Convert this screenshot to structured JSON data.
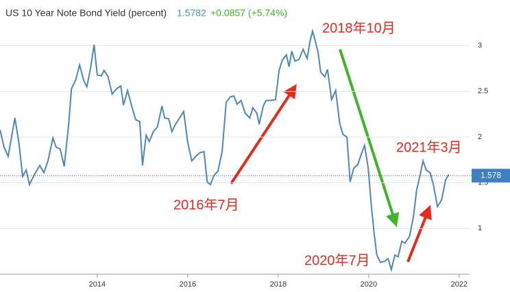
{
  "chart_data": {
    "type": "line",
    "title": "US 10 Year Note Bond Yield (percent)",
    "last": 1.5782,
    "change": "+0.0857 (+5.74%)",
    "last_value": 1.578,
    "annotations": [
      "2018年10月",
      "2021年3月",
      "2016年7月",
      "2020年7月"
    ],
    "xlim": [
      2011.85,
      2022.23
    ],
    "xticks": [
      2014,
      2016,
      2018,
      2020,
      2022
    ],
    "ylim": [
      0.5,
      3.5
    ],
    "yticks": [
      1,
      1.5,
      2,
      2.5,
      3
    ],
    "grid": true,
    "x": [
      2011.85,
      2011.94,
      2012.03,
      2012.18,
      2012.27,
      2012.35,
      2012.43,
      2012.5,
      2012.61,
      2012.73,
      2012.82,
      2012.91,
      2013.02,
      2013.09,
      2013.18,
      2013.27,
      2013.37,
      2013.43,
      2013.52,
      2013.61,
      2013.7,
      2013.77,
      2013.85,
      2013.93,
      2014.0,
      2014.09,
      2014.15,
      2014.24,
      2014.33,
      2014.43,
      2014.52,
      2014.58,
      2014.67,
      2014.76,
      2014.85,
      2014.94,
      2015.0,
      2015.08,
      2015.15,
      2015.24,
      2015.33,
      2015.43,
      2015.49,
      2015.58,
      2015.65,
      2015.73,
      2015.82,
      2015.91,
      2016.0,
      2016.09,
      2016.18,
      2016.27,
      2016.36,
      2016.43,
      2016.5,
      2016.58,
      2016.67,
      2016.76,
      2016.85,
      2016.94,
      2017.02,
      2017.09,
      2017.18,
      2017.27,
      2017.37,
      2017.44,
      2017.53,
      2017.58,
      2017.67,
      2017.73,
      2017.82,
      2017.94,
      2018.02,
      2018.09,
      2018.18,
      2018.24,
      2018.3,
      2018.37,
      2018.46,
      2018.55,
      2018.64,
      2018.7,
      2018.76,
      2018.82,
      2018.88,
      2018.94,
      2019.03,
      2019.09,
      2019.18,
      2019.27,
      2019.36,
      2019.43,
      2019.52,
      2019.59,
      2019.67,
      2019.76,
      2019.82,
      2019.91,
      2019.99,
      2020.06,
      2020.12,
      2020.18,
      2020.26,
      2020.35,
      2020.43,
      2020.5,
      2020.58,
      2020.65,
      2020.73,
      2020.8,
      2020.9,
      2020.99,
      2021.06,
      2021.14,
      2021.2,
      2021.27,
      2021.36,
      2021.43,
      2021.52,
      2021.61,
      2021.7,
      2021.77
    ],
    "series": [
      {
        "name": "US 10 Year Note Bond Yield",
        "color": "#4a86c0",
        "values": [
          2.08,
          1.89,
          1.79,
          2.21,
          1.93,
          1.57,
          1.64,
          1.48,
          1.59,
          1.69,
          1.61,
          1.74,
          1.99,
          1.89,
          1.87,
          1.68,
          2.15,
          2.53,
          2.62,
          2.79,
          2.62,
          2.55,
          2.75,
          3.01,
          2.68,
          2.67,
          2.73,
          2.66,
          2.47,
          2.53,
          2.56,
          2.35,
          2.51,
          2.34,
          2.19,
          2.17,
          1.69,
          2.02,
          1.95,
          2.06,
          2.11,
          2.34,
          2.21,
          2.2,
          2.06,
          2.14,
          2.21,
          2.28,
          1.94,
          1.74,
          1.79,
          1.83,
          1.84,
          1.51,
          1.48,
          1.58,
          1.63,
          1.84,
          2.38,
          2.44,
          2.45,
          2.36,
          2.4,
          2.26,
          2.21,
          2.32,
          2.26,
          2.14,
          2.34,
          2.4,
          2.4,
          2.41,
          2.73,
          2.84,
          2.9,
          2.77,
          2.94,
          2.83,
          2.85,
          2.96,
          2.86,
          3.04,
          3.16,
          3.05,
          2.93,
          2.71,
          2.66,
          2.74,
          2.41,
          2.51,
          2.15,
          2.03,
          2.0,
          1.51,
          1.66,
          1.7,
          1.79,
          1.91,
          1.66,
          1.24,
          0.95,
          0.71,
          0.63,
          0.64,
          0.67,
          0.55,
          0.71,
          0.69,
          0.86,
          0.84,
          0.91,
          1.13,
          1.42,
          1.59,
          1.74,
          1.64,
          1.61,
          1.48,
          1.24,
          1.31,
          1.53,
          1.59
        ]
      }
    ]
  }
}
